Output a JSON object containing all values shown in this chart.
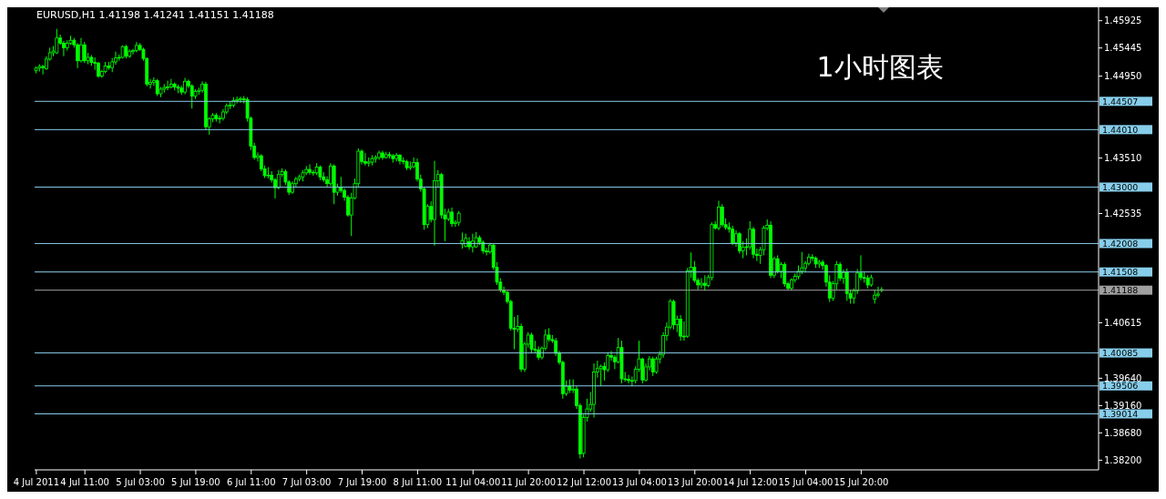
{
  "chart_data": {
    "type": "candlestick",
    "title": "EURUSD,H1 1.41198 1.41241 1.41151 1.41188",
    "annotations": [
      "1小时图表"
    ],
    "color": "#00ff00",
    "categories": [
      "4 Jul 2011",
      null,
      null,
      null,
      null,
      null,
      null,
      null,
      null,
      null,
      null,
      null,
      null,
      null,
      "4 Jul 11:00",
      null,
      null,
      null,
      null,
      null,
      null,
      null,
      null,
      null,
      null,
      null,
      null,
      null,
      null,
      null,
      "5 Jul 03:00",
      null,
      null,
      null,
      null,
      null,
      null,
      null,
      null,
      null,
      null,
      null,
      null,
      null,
      null,
      null,
      "5 Jul 19:00",
      null,
      null,
      null,
      null,
      null,
      null,
      null,
      null,
      null,
      null,
      null,
      null,
      null,
      null,
      null,
      "6 Jul 11:00",
      null,
      null,
      null,
      null,
      null,
      null,
      null,
      null,
      null,
      null,
      null,
      null,
      null,
      null,
      null,
      "7 Jul 03:00",
      null,
      null,
      null,
      null,
      null,
      null,
      null,
      null,
      null,
      null,
      null,
      null,
      null,
      null,
      null,
      "7 Jul 19:00",
      null,
      null,
      null,
      null,
      null,
      null,
      null,
      null,
      null,
      null,
      null,
      null,
      null,
      null,
      null,
      "8 Jul 11:00",
      null,
      null,
      null,
      null,
      null,
      null,
      null,
      null,
      null,
      null,
      null,
      null,
      null,
      null,
      null,
      "11 Jul 04:00",
      null,
      null,
      null,
      null,
      null,
      null,
      null,
      null,
      null,
      null,
      null,
      null,
      null,
      null,
      null,
      "11 Jul 20:00",
      null,
      null,
      null,
      null,
      null,
      null,
      null,
      null,
      null,
      null,
      null,
      null,
      null,
      null,
      null,
      "12 Jul 12:00",
      null,
      null,
      null,
      null,
      null,
      null,
      null,
      null,
      null,
      null,
      null,
      null,
      null,
      null,
      null,
      "13 Jul 04:00",
      null,
      null,
      null,
      null,
      null,
      null,
      null,
      null,
      null,
      null,
      null,
      null,
      null,
      null,
      null,
      "13 Jul 20:00",
      null,
      null,
      null,
      null,
      null,
      null,
      null,
      null,
      null,
      null,
      null,
      null,
      null,
      null,
      null,
      "14 Jul 12:00",
      null,
      null,
      null,
      null,
      null,
      null,
      null,
      null,
      null,
      null,
      null,
      null,
      null,
      null,
      null,
      "15 Jul 04:00",
      null,
      null,
      null,
      null,
      null,
      null,
      null,
      null,
      null,
      null,
      null,
      null,
      null,
      null,
      null,
      "15 Jul 20:00",
      null,
      null,
      null,
      null,
      null,
      null,
      null,
      null,
      null,
      null,
      null,
      null,
      null,
      null,
      null,
      null,
      null,
      null,
      null,
      null,
      null,
      null,
      null,
      null,
      null,
      null,
      null,
      null,
      null,
      null,
      null,
      null,
      null,
      null,
      null,
      null,
      null,
      null,
      null,
      null,
      null,
      null,
      null,
      null,
      null,
      null,
      null,
      null,
      null,
      null,
      null,
      null,
      null,
      null,
      null,
      null,
      null,
      null,
      null,
      null,
      null,
      null,
      null,
      null,
      null,
      null,
      null,
      null
    ],
    "ohlc": [
      [
        1.4505,
        1.4512,
        1.45,
        1.4509
      ],
      [
        1.4509,
        1.4516,
        1.4503,
        1.4512
      ],
      [
        1.4512,
        1.4515,
        1.4498,
        1.451
      ],
      [
        1.4508,
        1.453,
        1.4506,
        1.4525
      ],
      [
        1.4525,
        1.4545,
        1.4522,
        1.4536
      ],
      [
        1.4536,
        1.4548,
        1.453,
        1.4539
      ],
      [
        1.4536,
        1.4578,
        1.4534,
        1.4562
      ],
      [
        1.4562,
        1.4568,
        1.455,
        1.4553
      ],
      [
        1.4553,
        1.4557,
        1.453,
        1.4545
      ],
      [
        1.4545,
        1.4558,
        1.454,
        1.4553
      ],
      [
        1.4553,
        1.4566,
        1.455,
        1.4558
      ],
      [
        1.4558,
        1.4562,
        1.4545,
        1.455
      ],
      [
        1.455,
        1.4553,
        1.4509,
        1.4522
      ],
      [
        1.4522,
        1.4562,
        1.4519,
        1.455
      ],
      [
        1.455,
        1.4555,
        1.4518,
        1.4522
      ],
      [
        1.4522,
        1.4536,
        1.4516,
        1.4528
      ],
      [
        1.4528,
        1.4532,
        1.4513,
        1.4519
      ],
      [
        1.4519,
        1.4528,
        1.4506,
        1.4518
      ],
      [
        1.4518,
        1.452,
        1.4492,
        1.4495
      ],
      [
        1.4495,
        1.4506,
        1.4492,
        1.4503
      ],
      [
        1.4503,
        1.452,
        1.45,
        1.4513
      ],
      [
        1.4513,
        1.452,
        1.4506,
        1.451
      ],
      [
        1.451,
        1.4527,
        1.4502,
        1.452
      ],
      [
        1.452,
        1.4538,
        1.4515,
        1.4527
      ],
      [
        1.4527,
        1.4533,
        1.4522,
        1.4528
      ],
      [
        1.4528,
        1.4549,
        1.4526,
        1.4547
      ],
      [
        1.4547,
        1.455,
        1.4526,
        1.453
      ],
      [
        1.453,
        1.4542,
        1.4527,
        1.4538
      ],
      [
        1.4538,
        1.4543,
        1.4533,
        1.454
      ],
      [
        1.454,
        1.4555,
        1.4537,
        1.4549
      ],
      [
        1.4549,
        1.4553,
        1.4539,
        1.4542
      ],
      [
        1.4542,
        1.4545,
        1.4522,
        1.4526
      ],
      [
        1.4526,
        1.4528,
        1.4477,
        1.4481
      ],
      [
        1.4481,
        1.449,
        1.4473,
        1.4484
      ],
      [
        1.4484,
        1.4493,
        1.4478,
        1.4487
      ],
      [
        1.4487,
        1.449,
        1.446,
        1.4464
      ],
      [
        1.4464,
        1.4476,
        1.4458,
        1.4472
      ],
      [
        1.4472,
        1.4481,
        1.4466,
        1.4475
      ],
      [
        1.4475,
        1.4487,
        1.447,
        1.4476
      ],
      [
        1.4476,
        1.449,
        1.4473,
        1.4481
      ],
      [
        1.4481,
        1.4484,
        1.447,
        1.4476
      ],
      [
        1.4476,
        1.448,
        1.4465,
        1.4474
      ],
      [
        1.4474,
        1.4478,
        1.4462,
        1.4467
      ],
      [
        1.4467,
        1.4492,
        1.4463,
        1.4486
      ],
      [
        1.4486,
        1.4489,
        1.4474,
        1.4478
      ],
      [
        1.4478,
        1.4481,
        1.4438,
        1.446
      ],
      [
        1.446,
        1.4472,
        1.4455,
        1.4468
      ],
      [
        1.4468,
        1.4475,
        1.4462,
        1.447
      ],
      [
        1.447,
        1.4486,
        1.4466,
        1.4481
      ],
      [
        1.4481,
        1.4485,
        1.4401,
        1.4406
      ],
      [
        1.4406,
        1.4423,
        1.4392,
        1.442
      ],
      [
        1.442,
        1.443,
        1.4414,
        1.4426
      ],
      [
        1.4426,
        1.443,
        1.4415,
        1.442
      ],
      [
        1.442,
        1.4426,
        1.4412,
        1.4421
      ],
      [
        1.4421,
        1.4437,
        1.4417,
        1.4432
      ],
      [
        1.4432,
        1.4447,
        1.4428,
        1.4443
      ],
      [
        1.4443,
        1.445,
        1.4437,
        1.4444
      ],
      [
        1.4444,
        1.4458,
        1.444,
        1.4452
      ],
      [
        1.4452,
        1.4459,
        1.4447,
        1.4454
      ],
      [
        1.4454,
        1.4459,
        1.4448,
        1.4455
      ],
      [
        1.4455,
        1.446,
        1.4447,
        1.4454
      ],
      [
        1.4454,
        1.4458,
        1.4415,
        1.4421
      ],
      [
        1.4421,
        1.4424,
        1.4365,
        1.4372
      ],
      [
        1.4372,
        1.4378,
        1.4348,
        1.4352
      ],
      [
        1.4352,
        1.4361,
        1.4345,
        1.4355
      ],
      [
        1.4355,
        1.4358,
        1.4328,
        1.4332
      ],
      [
        1.4332,
        1.4338,
        1.4316,
        1.432
      ],
      [
        1.432,
        1.4335,
        1.4315,
        1.4321
      ],
      [
        1.4321,
        1.4328,
        1.4308,
        1.4313
      ],
      [
        1.4313,
        1.4316,
        1.428,
        1.4299
      ],
      [
        1.4299,
        1.433,
        1.4296,
        1.4322
      ],
      [
        1.4322,
        1.4333,
        1.4318,
        1.4327
      ],
      [
        1.4327,
        1.4331,
        1.4304,
        1.4309
      ],
      [
        1.4309,
        1.4312,
        1.4286,
        1.4291
      ],
      [
        1.4291,
        1.431,
        1.4288,
        1.4306
      ],
      [
        1.4306,
        1.4318,
        1.43,
        1.4314
      ],
      [
        1.4314,
        1.4322,
        1.431,
        1.4318
      ],
      [
        1.4318,
        1.433,
        1.431,
        1.4325
      ],
      [
        1.4325,
        1.4337,
        1.4321,
        1.4331
      ],
      [
        1.4331,
        1.434,
        1.4322,
        1.4326
      ],
      [
        1.4326,
        1.433,
        1.432,
        1.4325
      ],
      [
        1.4325,
        1.4342,
        1.4321,
        1.4335
      ],
      [
        1.4335,
        1.4338,
        1.4312,
        1.4318
      ],
      [
        1.4318,
        1.4326,
        1.4309,
        1.4313
      ],
      [
        1.4313,
        1.4319,
        1.43,
        1.4306
      ],
      [
        1.4306,
        1.4342,
        1.4302,
        1.4337
      ],
      [
        1.4337,
        1.434,
        1.427,
        1.4291
      ],
      [
        1.4291,
        1.4306,
        1.4285,
        1.43
      ],
      [
        1.43,
        1.4318,
        1.429,
        1.4294
      ],
      [
        1.4294,
        1.4298,
        1.4276,
        1.4282
      ],
      [
        1.4282,
        1.4286,
        1.4248,
        1.4251
      ],
      [
        1.4251,
        1.429,
        1.4214,
        1.4281
      ],
      [
        1.4281,
        1.4315,
        1.4278,
        1.4306
      ],
      [
        1.4306,
        1.4368,
        1.43,
        1.4363
      ],
      [
        1.4363,
        1.4366,
        1.434,
        1.4345
      ],
      [
        1.4345,
        1.436,
        1.4338,
        1.4342
      ],
      [
        1.4342,
        1.4352,
        1.4336,
        1.4344
      ],
      [
        1.4344,
        1.4356,
        1.4338,
        1.435
      ],
      [
        1.435,
        1.4356,
        1.4343,
        1.4352
      ],
      [
        1.4352,
        1.4364,
        1.4348,
        1.436
      ],
      [
        1.436,
        1.4364,
        1.4348,
        1.4352
      ],
      [
        1.4352,
        1.4362,
        1.435,
        1.4357
      ],
      [
        1.4357,
        1.4362,
        1.435,
        1.4355
      ],
      [
        1.4355,
        1.4358,
        1.4343,
        1.435
      ],
      [
        1.435,
        1.436,
        1.4345,
        1.4356
      ],
      [
        1.4356,
        1.4358,
        1.434,
        1.4346
      ],
      [
        1.4346,
        1.4352,
        1.434,
        1.4345
      ],
      [
        1.4345,
        1.4348,
        1.433,
        1.4334
      ],
      [
        1.4334,
        1.4345,
        1.433,
        1.4336
      ],
      [
        1.4336,
        1.4352,
        1.4333,
        1.4343
      ],
      [
        1.4343,
        1.435,
        1.431,
        1.4314
      ],
      [
        1.4314,
        1.4322,
        1.4292,
        1.4297
      ],
      [
        1.4297,
        1.43,
        1.4225,
        1.4234
      ],
      [
        1.4234,
        1.427,
        1.4228,
        1.4266
      ],
      [
        1.4266,
        1.4275,
        1.4238,
        1.4243
      ],
      [
        1.4243,
        1.4346,
        1.4197,
        1.4311
      ],
      [
        1.4311,
        1.433,
        1.43,
        1.4322
      ],
      [
        1.4322,
        1.4325,
        1.4245,
        1.4251
      ],
      [
        1.4251,
        1.4262,
        1.4205,
        1.4244
      ],
      [
        1.4244,
        1.4262,
        1.424,
        1.4256
      ],
      [
        1.4256,
        1.4264,
        1.423,
        1.4236
      ],
      [
        1.4236,
        1.4242,
        1.423,
        1.4238
      ],
      [
        1.4238,
        1.4258,
        1.4232,
        1.4254
      ],
      [
        1.42,
        1.422,
        1.4192,
        1.4206
      ],
      [
        1.4196,
        1.4218,
        1.4194,
        1.421
      ],
      [
        1.4204,
        1.4212,
        1.419,
        1.4195
      ],
      [
        1.4195,
        1.4218,
        1.4185,
        1.4205
      ],
      [
        1.4195,
        1.4221,
        1.4193,
        1.4211
      ],
      [
        1.4211,
        1.4215,
        1.4198,
        1.4203
      ],
      [
        1.4203,
        1.4206,
        1.4183,
        1.4188
      ],
      [
        1.4188,
        1.4193,
        1.418,
        1.4186
      ],
      [
        1.4186,
        1.4202,
        1.4183,
        1.4198
      ],
      [
        1.4198,
        1.42,
        1.4155,
        1.4159
      ],
      [
        1.4159,
        1.4168,
        1.4128,
        1.4133
      ],
      [
        1.4133,
        1.414,
        1.4115,
        1.4119
      ],
      [
        1.4119,
        1.4125,
        1.411,
        1.4115
      ],
      [
        1.4115,
        1.4118,
        1.4095,
        1.4099
      ],
      [
        1.4099,
        1.4102,
        1.4048,
        1.4052
      ],
      [
        1.4052,
        1.4072,
        1.4015,
        1.405
      ],
      [
        1.405,
        1.4075,
        1.4045,
        1.4055
      ],
      [
        1.4055,
        1.406,
        1.3975,
        1.398
      ],
      [
        1.398,
        1.4028,
        1.3975,
        1.4024
      ],
      [
        1.4024,
        1.4045,
        1.4018,
        1.404
      ],
      [
        1.404,
        1.4044,
        1.4008,
        1.4015
      ],
      [
        1.4015,
        1.403,
        1.4008,
        1.4014
      ],
      [
        1.4014,
        1.402,
        1.3996,
        1.4001
      ],
      [
        1.4001,
        1.402,
        1.3997,
        1.4017
      ],
      [
        1.4017,
        1.405,
        1.4013,
        1.404
      ],
      [
        1.404,
        1.4052,
        1.4028,
        1.4032
      ],
      [
        1.4032,
        1.404,
        1.4026,
        1.403
      ],
      [
        1.403,
        1.4035,
        1.4003,
        1.4008
      ],
      [
        1.4008,
        1.4012,
        1.3988,
        1.3992
      ],
      [
        1.3992,
        1.3995,
        1.3928,
        1.3937
      ],
      [
        1.3937,
        1.396,
        1.3933,
        1.395
      ],
      [
        1.395,
        1.3962,
        1.3938,
        1.3943
      ],
      [
        1.3943,
        1.3962,
        1.3938,
        1.3945
      ],
      [
        1.3945,
        1.395,
        1.391,
        1.3916
      ],
      [
        1.3916,
        1.392,
        1.3823,
        1.3831
      ],
      [
        1.3832,
        1.39,
        1.3825,
        1.3895
      ],
      [
        1.3895,
        1.3928,
        1.3888,
        1.391
      ],
      [
        1.391,
        1.394,
        1.3905,
        1.3918
      ],
      [
        1.3918,
        1.399,
        1.3895,
        1.3975
      ],
      [
        1.3975,
        1.3995,
        1.3965,
        1.3981
      ],
      [
        1.3981,
        1.3988,
        1.395,
        1.3985
      ],
      [
        1.3985,
        1.3992,
        1.396,
        1.3979
      ],
      [
        1.3979,
        1.401,
        1.3975,
        1.4004
      ],
      [
        1.4004,
        1.4012,
        1.3995,
        1.4001
      ],
      [
        1.4001,
        1.4005,
        1.398,
        1.3993
      ],
      [
        1.3993,
        1.4035,
        1.399,
        1.4018
      ],
      [
        1.4018,
        1.403,
        1.3955,
        1.3963
      ],
      [
        1.3963,
        1.3975,
        1.3958,
        1.3962
      ],
      [
        1.3962,
        1.397,
        1.3955,
        1.396
      ],
      [
        1.396,
        1.3967,
        1.395,
        1.396
      ],
      [
        1.396,
        1.3985,
        1.3955,
        1.398
      ],
      [
        1.398,
        1.403,
        1.3975,
        1.3998
      ],
      [
        1.3998,
        1.4,
        1.3955,
        1.3961
      ],
      [
        1.3961,
        1.399,
        1.3958,
        1.3984
      ],
      [
        1.3984,
        1.4003,
        1.3978,
        1.3998
      ],
      [
        1.3998,
        1.4002,
        1.3968,
        1.3975
      ],
      [
        1.3975,
        1.4002,
        1.3972,
        1.3998
      ],
      [
        1.3998,
        1.4012,
        1.399,
        1.4006
      ],
      [
        1.4006,
        1.4045,
        1.4,
        1.4039
      ],
      [
        1.4039,
        1.4062,
        1.403,
        1.4054
      ],
      [
        1.4054,
        1.4103,
        1.405,
        1.4099
      ],
      [
        1.4099,
        1.4102,
        1.405,
        1.4058
      ],
      [
        1.4058,
        1.4074,
        1.4045,
        1.4068
      ],
      [
        1.4068,
        1.4075,
        1.403,
        1.4038
      ],
      [
        1.4038,
        1.4064,
        1.403,
        1.4038
      ],
      [
        1.4038,
        1.4158,
        1.4035,
        1.4153
      ],
      [
        1.4153,
        1.4185,
        1.414,
        1.4159
      ],
      [
        1.4159,
        1.417,
        1.4132,
        1.4136
      ],
      [
        1.4136,
        1.414,
        1.412,
        1.4128
      ],
      [
        1.4128,
        1.414,
        1.4122,
        1.4131
      ],
      [
        1.4131,
        1.4145,
        1.4118,
        1.4127
      ],
      [
        1.4127,
        1.4146,
        1.4124,
        1.4141
      ],
      [
        1.4141,
        1.4238,
        1.4136,
        1.4234
      ],
      [
        1.4234,
        1.424,
        1.4225,
        1.4228
      ],
      [
        1.4228,
        1.4276,
        1.4224,
        1.4265
      ],
      [
        1.4265,
        1.427,
        1.423,
        1.4234
      ],
      [
        1.4234,
        1.4245,
        1.4225,
        1.4229
      ],
      [
        1.4229,
        1.4238,
        1.422,
        1.4226
      ],
      [
        1.4226,
        1.4232,
        1.4198,
        1.4202
      ],
      [
        1.4202,
        1.4224,
        1.4195,
        1.4218
      ],
      [
        1.4218,
        1.4221,
        1.4183,
        1.4188
      ],
      [
        1.4188,
        1.4205,
        1.4175,
        1.4194
      ],
      [
        1.4194,
        1.421,
        1.418,
        1.4195
      ],
      [
        1.4195,
        1.424,
        1.419,
        1.4226
      ],
      [
        1.4226,
        1.423,
        1.4175,
        1.4182
      ],
      [
        1.4182,
        1.4192,
        1.417,
        1.418
      ],
      [
        1.418,
        1.4195,
        1.4165,
        1.419
      ],
      [
        1.419,
        1.4232,
        1.418,
        1.4228
      ],
      [
        1.4228,
        1.4243,
        1.4224,
        1.4233
      ],
      [
        1.4233,
        1.424,
        1.414,
        1.4145
      ],
      [
        1.4145,
        1.4178,
        1.414,
        1.4174
      ],
      [
        1.4174,
        1.418,
        1.4148,
        1.4152
      ],
      [
        1.4152,
        1.4168,
        1.414,
        1.4164
      ],
      [
        1.4164,
        1.4168,
        1.4125,
        1.413
      ],
      [
        1.413,
        1.4134,
        1.4118,
        1.4122
      ],
      [
        1.4122,
        1.414,
        1.4118,
        1.4137
      ],
      [
        1.4137,
        1.4148,
        1.4132,
        1.4143
      ],
      [
        1.4143,
        1.4162,
        1.4138,
        1.4152
      ],
      [
        1.4152,
        1.4186,
        1.4147,
        1.4158
      ],
      [
        1.4158,
        1.417,
        1.415,
        1.4166
      ],
      [
        1.4166,
        1.4183,
        1.4162,
        1.4177
      ],
      [
        1.4177,
        1.4182,
        1.417,
        1.4175
      ],
      [
        1.4175,
        1.4178,
        1.4158,
        1.4165
      ],
      [
        1.4165,
        1.4172,
        1.4158,
        1.4168
      ],
      [
        1.4168,
        1.4172,
        1.4155,
        1.4162
      ],
      [
        1.4162,
        1.4165,
        1.4125,
        1.4133
      ],
      [
        1.4133,
        1.4145,
        1.4098,
        1.4105
      ],
      [
        1.4105,
        1.4135,
        1.41,
        1.413
      ],
      [
        1.413,
        1.417,
        1.412,
        1.4164
      ],
      [
        1.4164,
        1.4168,
        1.4135,
        1.414
      ],
      [
        1.414,
        1.4155,
        1.413,
        1.415
      ],
      [
        1.415,
        1.4157,
        1.41,
        1.4113
      ],
      [
        1.4113,
        1.412,
        1.4095,
        1.4105
      ],
      [
        1.4105,
        1.4122,
        1.4095,
        1.4118
      ],
      [
        1.4118,
        1.4156,
        1.4112,
        1.4149
      ],
      [
        1.4149,
        1.418,
        1.4136,
        1.4141
      ],
      [
        1.4141,
        1.4152,
        1.4132,
        1.414
      ],
      [
        1.414,
        1.4145,
        1.4122,
        1.4128
      ],
      [
        1.4128,
        1.4146,
        1.4125,
        1.4141
      ],
      [
        1.4103,
        1.412,
        1.4095,
        1.411
      ],
      [
        1.411,
        1.4125,
        1.4106,
        1.4112
      ],
      [
        1.41198,
        1.41241,
        1.41151,
        1.41188
      ],
      null,
      null,
      null,
      null,
      null,
      null,
      null,
      null,
      null,
      null,
      null,
      null,
      null,
      null,
      null,
      null,
      null,
      null,
      null,
      null,
      null,
      null,
      null,
      null,
      null,
      null,
      null,
      null,
      null,
      null,
      null,
      null,
      null,
      null,
      null,
      null,
      null,
      null,
      null,
      null,
      null,
      null,
      null,
      null,
      null,
      null,
      null,
      null,
      null,
      null,
      null,
      null,
      null,
      null,
      null,
      null,
      null,
      null,
      null,
      null,
      null,
      null
    ],
    "ylim": [
      1.3803,
      1.4616
    ],
    "yticks": [
      1.45925,
      1.45445,
      {
        "value": 1.4495,
        "label": "1.44950"
      },
      {
        "value": 1.4351,
        "label": "1.43510"
      },
      1.42535,
      1.40615,
      {
        "value": 1.3964,
        "label": "1.39640"
      },
      {
        "value": 1.3916,
        "label": "1.39160"
      },
      {
        "value": 1.3868,
        "label": "1.38680"
      },
      {
        "value": 1.382,
        "label": "1.38200"
      }
    ],
    "ref_lines": [
      {
        "axis": "y",
        "value": 1.44507,
        "label": "1.44507",
        "color": "#87ceeb"
      },
      {
        "axis": "y",
        "value": 1.4401,
        "label": "1.44010",
        "color": "#87ceeb"
      },
      {
        "axis": "y",
        "value": 1.43,
        "label": "1.43000",
        "color": "#87ceeb"
      },
      {
        "axis": "y",
        "value": 1.42008,
        "label": "1.42008",
        "color": "#87ceeb"
      },
      {
        "axis": "y",
        "value": 1.41508,
        "label": "1.41508",
        "color": "#87ceeb"
      },
      {
        "axis": "y",
        "value": 1.41188,
        "label": "1.41188",
        "color": "#a0a0a0"
      },
      {
        "axis": "y",
        "value": 1.40085,
        "label": "1.40085",
        "color": "#87ceeb"
      },
      {
        "axis": "y",
        "value": 1.39506,
        "label": "1.39506",
        "color": "#87ceeb"
      },
      {
        "axis": "y",
        "value": 1.39014,
        "label": "1.39014",
        "color": "#87ceeb"
      }
    ]
  }
}
